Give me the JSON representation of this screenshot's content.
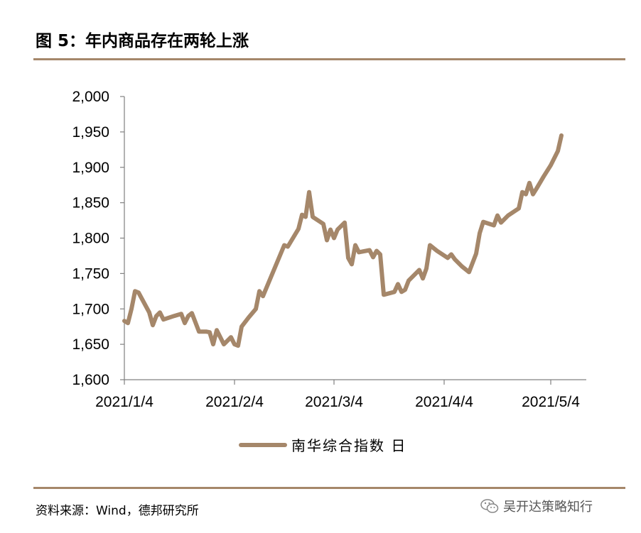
{
  "figure": {
    "title": "图 5：年内商品存在两轮上涨",
    "source": "资料来源：Wind，德邦研究所",
    "watermark": "吴开达策略知行"
  },
  "colors": {
    "line": "#a5876a",
    "rule": "#a5876a",
    "axis": "#808080"
  },
  "chart_data": {
    "type": "line",
    "title": "",
    "xlabel": "",
    "ylabel": "",
    "ylim": [
      1600,
      2000
    ],
    "yticks": [
      1600,
      1650,
      1700,
      1750,
      1800,
      1850,
      1900,
      1950,
      2000
    ],
    "ytick_labels": [
      "1,600",
      "1,650",
      "1,700",
      "1,750",
      "1,800",
      "1,850",
      "1,900",
      "1,950",
      "2,000"
    ],
    "xlim": [
      "2021-01-04",
      "2021-05-14"
    ],
    "xticks": [
      "2021-01-04",
      "2021-02-04",
      "2021-03-04",
      "2021-04-04",
      "2021-05-04"
    ],
    "xtick_labels": [
      "2021/1/4",
      "2021/2/4",
      "2021/3/4",
      "2021/4/4",
      "2021/5/4"
    ],
    "legend": {
      "position": "bottom"
    },
    "grid": false,
    "series": [
      {
        "name": "南华综合指数 日",
        "points": [
          [
            "2021-01-04",
            1683
          ],
          [
            "2021-01-05",
            1680
          ],
          [
            "2021-01-06",
            1700
          ],
          [
            "2021-01-07",
            1725
          ],
          [
            "2021-01-08",
            1723
          ],
          [
            "2021-01-11",
            1695
          ],
          [
            "2021-01-12",
            1677
          ],
          [
            "2021-01-13",
            1690
          ],
          [
            "2021-01-14",
            1695
          ],
          [
            "2021-01-15",
            1685
          ],
          [
            "2021-01-18",
            1690
          ],
          [
            "2021-01-20",
            1693
          ],
          [
            "2021-01-21",
            1680
          ],
          [
            "2021-01-22",
            1690
          ],
          [
            "2021-01-23",
            1694
          ],
          [
            "2021-01-25",
            1668
          ],
          [
            "2021-01-27",
            1668
          ],
          [
            "2021-01-28",
            1667
          ],
          [
            "2021-01-29",
            1650
          ],
          [
            "2021-01-30",
            1670
          ],
          [
            "2021-02-01",
            1650
          ],
          [
            "2021-02-02",
            1655
          ],
          [
            "2021-02-03",
            1660
          ],
          [
            "2021-02-04",
            1650
          ],
          [
            "2021-02-05",
            1648
          ],
          [
            "2021-02-06",
            1675
          ],
          [
            "2021-02-08",
            1688
          ],
          [
            "2021-02-10",
            1700
          ],
          [
            "2021-02-11",
            1725
          ],
          [
            "2021-02-12",
            1718
          ],
          [
            "2021-02-18",
            1790
          ],
          [
            "2021-02-19",
            1788
          ],
          [
            "2021-02-22",
            1813
          ],
          [
            "2021-02-23",
            1833
          ],
          [
            "2021-02-24",
            1830
          ],
          [
            "2021-02-25",
            1865
          ],
          [
            "2021-02-26",
            1830
          ],
          [
            "2021-03-01",
            1820
          ],
          [
            "2021-03-02",
            1797
          ],
          [
            "2021-03-03",
            1812
          ],
          [
            "2021-03-04",
            1800
          ],
          [
            "2021-03-05",
            1812
          ],
          [
            "2021-03-07",
            1822
          ],
          [
            "2021-03-08",
            1772
          ],
          [
            "2021-03-09",
            1763
          ],
          [
            "2021-03-10",
            1790
          ],
          [
            "2021-03-11",
            1780
          ],
          [
            "2021-03-14",
            1783
          ],
          [
            "2021-03-15",
            1773
          ],
          [
            "2021-03-16",
            1782
          ],
          [
            "2021-03-17",
            1777
          ],
          [
            "2021-03-18",
            1720
          ],
          [
            "2021-03-21",
            1724
          ],
          [
            "2021-03-22",
            1735
          ],
          [
            "2021-03-23",
            1724
          ],
          [
            "2021-03-24",
            1727
          ],
          [
            "2021-03-25",
            1740
          ],
          [
            "2021-03-28",
            1755
          ],
          [
            "2021-03-29",
            1743
          ],
          [
            "2021-03-30",
            1757
          ],
          [
            "2021-03-31",
            1790
          ],
          [
            "2021-04-02",
            1782
          ],
          [
            "2021-04-05",
            1772
          ],
          [
            "2021-04-06",
            1777
          ],
          [
            "2021-04-07",
            1770
          ],
          [
            "2021-04-09",
            1760
          ],
          [
            "2021-04-11",
            1752
          ],
          [
            "2021-04-13",
            1778
          ],
          [
            "2021-04-14",
            1807
          ],
          [
            "2021-04-15",
            1823
          ],
          [
            "2021-04-18",
            1818
          ],
          [
            "2021-04-19",
            1832
          ],
          [
            "2021-04-20",
            1822
          ],
          [
            "2021-04-22",
            1832
          ],
          [
            "2021-04-25",
            1842
          ],
          [
            "2021-04-26",
            1865
          ],
          [
            "2021-04-27",
            1862
          ],
          [
            "2021-04-28",
            1878
          ],
          [
            "2021-04-29",
            1862
          ],
          [
            "2021-04-30",
            1870
          ],
          [
            "2021-05-02",
            1887
          ],
          [
            "2021-05-04",
            1903
          ],
          [
            "2021-05-06",
            1923
          ],
          [
            "2021-05-07",
            1945
          ]
        ]
      }
    ]
  }
}
